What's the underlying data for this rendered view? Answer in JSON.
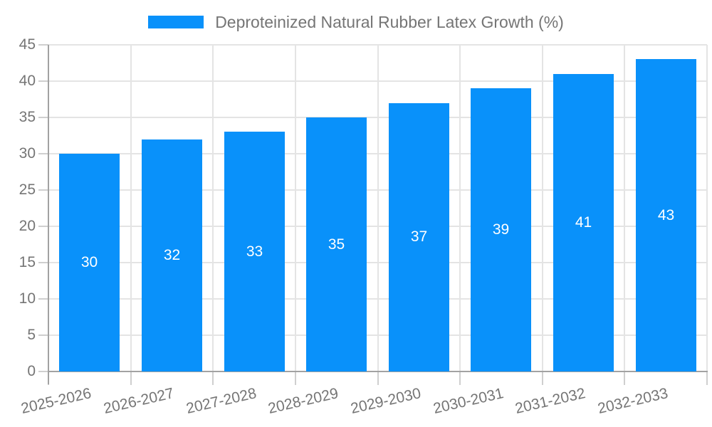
{
  "legend": {
    "label": "Deproteinized Natural Rubber Latex Growth (%)"
  },
  "chart_data": {
    "type": "bar",
    "title": "Deproteinized Natural Rubber Latex Growth (%)",
    "categories": [
      "2025-2026",
      "2026-2027",
      "2027-2028",
      "2028-2029",
      "2029-2030",
      "2030-2031",
      "2031-2032",
      "2032-2033"
    ],
    "values": [
      30,
      32,
      33,
      35,
      37,
      39,
      41,
      43
    ],
    "series": [
      {
        "name": "Deproteinized Natural Rubber Latex Growth (%)",
        "values": [
          30,
          32,
          33,
          35,
          37,
          39,
          41,
          43
        ]
      }
    ],
    "value_labels": [
      "30",
      "32",
      "33",
      "35",
      "37",
      "39",
      "41",
      "43"
    ],
    "xlabel": "",
    "ylabel": "",
    "ylim": [
      0,
      45
    ],
    "ytick_step": 5,
    "ytick_labels": [
      "0",
      "5",
      "10",
      "15",
      "20",
      "25",
      "30",
      "35",
      "40",
      "45"
    ],
    "grid": true,
    "legend_position": "top-center",
    "value_label_position": "inside-middle",
    "x_label_rotation_deg": -13
  },
  "colors": {
    "bar": "#0991FA",
    "axis_line": "#A2A2A2",
    "grid_line": "#E4E4E4",
    "tick": "#CFCFCF",
    "label_text": "#757575",
    "value_label_text": "#FFFFFF",
    "background": "#FFFFFF"
  }
}
